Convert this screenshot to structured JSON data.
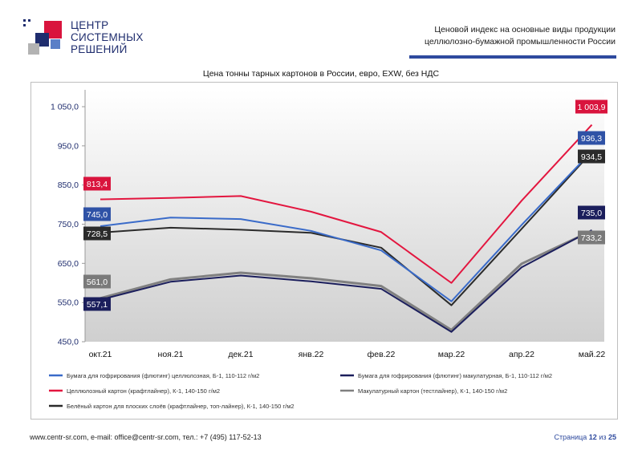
{
  "logo": {
    "lines": [
      "ЦЕНТР",
      "СИСТЕМНЫХ",
      "РЕШЕНИЙ"
    ]
  },
  "header": {
    "title_line1": "Ценовой индекс на основные виды продукции",
    "title_line2": "целлюлозно-бумажной промышленности России"
  },
  "chart_title": "Цена тонны тарных картонов в России, евро, EXW, без НДС",
  "chart_data": {
    "type": "line",
    "title": "Цена тонны тарных картонов в России, евро, EXW, без НДС",
    "xlabel": "",
    "ylabel": "",
    "categories": [
      "окт.21",
      "ноя.21",
      "дек.21",
      "янв.22",
      "фев.22",
      "мар.22",
      "апр.22",
      "май.22"
    ],
    "ylim": [
      450,
      1050
    ],
    "yticks": [
      450,
      550,
      650,
      750,
      850,
      950,
      1050
    ],
    "ytick_labels": [
      "450,0",
      "550,0",
      "650,0",
      "750,0",
      "850,0",
      "950,0",
      "1 050,0"
    ],
    "grid": false,
    "legend_position": "bottom",
    "series": [
      {
        "name": "Бумага для гофрирования (флютинг) целлюлозная, Б-1, 110-112 г/м2",
        "color": "#3a6bc9",
        "values": [
          745.0,
          767,
          763,
          733,
          683,
          553,
          748,
          936.3
        ],
        "labels": {
          "0": "745,0",
          "7": "936,3"
        },
        "label_color": "#2f52a6"
      },
      {
        "name": "Бумага для гофрирования (флютинг) макулатурная, Б-1, 110-112 г/м2",
        "color": "#1b1e5c",
        "values": [
          557.1,
          603,
          619,
          604,
          585,
          475,
          640,
          735.0
        ],
        "labels": {
          "0": "557,1",
          "7": "735,0"
        },
        "label_color": "#1b1e5c"
      },
      {
        "name": "Целлюлозный картон (крафтлайнер), К-1, 140-150 г/м2",
        "color": "#e3163f",
        "values": [
          813.4,
          817,
          822,
          782,
          730,
          600,
          810,
          1003.9
        ],
        "labels": {
          "0": "813,4",
          "7": "1 003,9"
        },
        "label_color": "#d9143d"
      },
      {
        "name": "Макулатурный картон (тестлайнер), К-1, 140-150 г/м2",
        "color": "#808080",
        "values": [
          561.0,
          609,
          626,
          612,
          592,
          480,
          649,
          733.2
        ],
        "labels": {
          "0": "561,0",
          "7": "733,2"
        },
        "label_color": "#7a7a7a"
      },
      {
        "name": "Белёный картон для плоских слоёв (крафтлайнер, топ-лайнер), К-1, 140-150 г/м2",
        "color": "#2b2b2b",
        "values": [
          728.5,
          741,
          736,
          728,
          690,
          543,
          738,
          934.5
        ],
        "labels": {
          "0": "728,5",
          "7": "934,5"
        },
        "label_color": "#2b2b2b"
      }
    ]
  },
  "footer": {
    "contact": "www.centr-sr.com, e-mail: office@centr-sr.com, тел.: +7 (495) 117-52-13",
    "page_word": "Страница",
    "page_number": "12",
    "page_of": "из",
    "page_total": "25"
  },
  "colors": {
    "brand_blue": "#2e4a9e",
    "logo_red": "#d9143d",
    "logo_navy": "#1f2d6e"
  }
}
